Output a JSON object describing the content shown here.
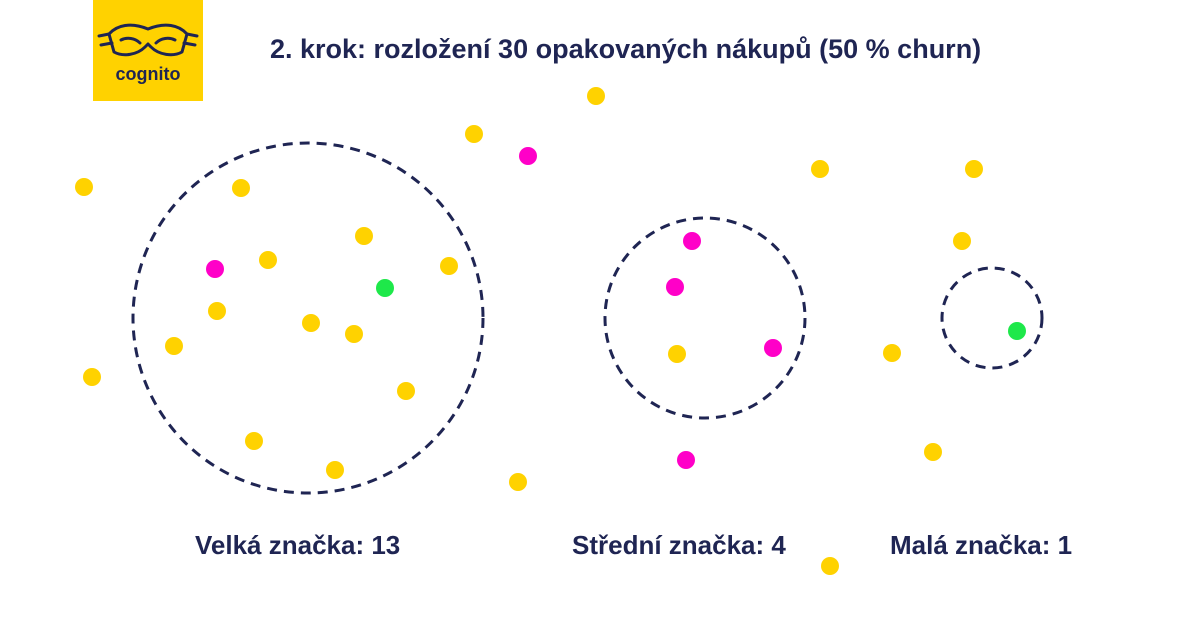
{
  "brand": {
    "logo_text": "cognito",
    "logo_bg": "#ffd200"
  },
  "title": "2. krok: rozložení 30 opakovaných nákupů (50 % churn)",
  "colors": {
    "text": "#1f2553",
    "circle_stroke": "#1f2553",
    "dot_yellow": "#ffd200",
    "dot_magenta": "#ff00c8",
    "dot_green": "#1ee84a"
  },
  "groups": [
    {
      "label": "Velká značka: 13"
    },
    {
      "label": "Střední značka: 4"
    },
    {
      "label": "Malá značka: 1"
    }
  ]
}
